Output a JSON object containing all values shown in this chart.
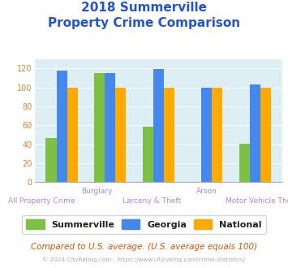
{
  "title_line1": "2018 Summerville",
  "title_line2": "Property Crime Comparison",
  "categories": [
    "All Property Crime",
    "Burglary",
    "Larceny & Theft",
    "Arson",
    "Motor Vehicle Theft"
  ],
  "summerville": [
    47,
    115,
    59,
    0,
    41
  ],
  "georgia": [
    118,
    115,
    119,
    100,
    103
  ],
  "national": [
    100,
    100,
    100,
    100,
    100
  ],
  "summerville_color": "#7dc142",
  "georgia_color": "#4488ee",
  "national_color": "#ffaa00",
  "ylim": [
    0,
    130
  ],
  "yticks": [
    0,
    20,
    40,
    60,
    80,
    100,
    120
  ],
  "plot_bg": "#ddeef5",
  "title_color": "#2255cc",
  "xlabel_upper_color": "#aa88cc",
  "xlabel_lower_color": "#aa88cc",
  "footer_text": "Compared to U.S. average. (U.S. average equals 100)",
  "copyright_text": "© 2024 CityRating.com - https://www.cityrating.com/crime-statistics/",
  "legend_labels": [
    "Summerville",
    "Georgia",
    "National"
  ],
  "bar_width": 0.22,
  "upper_label_idx": [
    1,
    3
  ],
  "upper_label_text": [
    "Burglary",
    "Arson"
  ],
  "lower_label_idx": [
    0,
    2,
    4
  ],
  "lower_label_text": [
    "All Property Crime",
    "Larceny & Theft",
    "Motor Vehicle Theft"
  ]
}
